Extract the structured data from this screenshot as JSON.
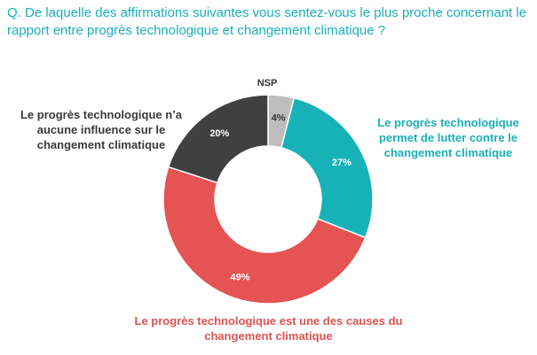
{
  "question": "Q. De laquelle des affirmations suivantes vous sentez-vous le plus proche concernant le rapport entre progrès technologique et changement climatique ?",
  "chart_data": {
    "type": "pie",
    "donut": true,
    "title": "",
    "slices": [
      {
        "label": "NSP",
        "value": 4,
        "display": "4%",
        "color": "#bdbdbd"
      },
      {
        "label": "Le progrès technologique permet de lutter contre le changement climatique",
        "value": 27,
        "display": "27%",
        "color": "#17b2b8"
      },
      {
        "label": "Le progrès technologique est une des causes du changement climatique",
        "value": 49,
        "display": "49%",
        "color": "#e55353"
      },
      {
        "label": "Le progrès technologique n’a aucune influence sur le changement climatique",
        "value": 20,
        "display": "20%",
        "color": "#404040"
      }
    ]
  },
  "legend": {
    "left": "Le progrès technologique n’a aucune influence sur le changement climatique",
    "right": "Le progrès technologique permet de lutter contre le changement climatique",
    "bottom": "Le progrès technologique est une des causes du changement climatique",
    "nsp": "NSP"
  }
}
